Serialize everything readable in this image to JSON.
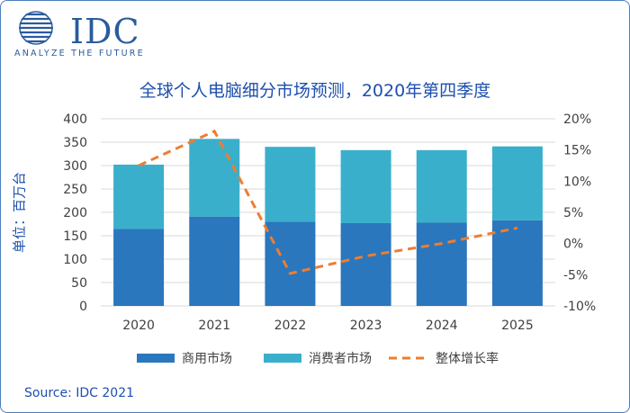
{
  "brand": {
    "logo_text": "IDC",
    "tagline": "ANALYZE THE FUTURE"
  },
  "chart_data": {
    "type": "bar",
    "title": "全球个人电脑细分市场预测，2020年第四季度",
    "ylabel": "单位：百万台",
    "categories": [
      "2020",
      "2021",
      "2022",
      "2023",
      "2024",
      "2025"
    ],
    "series": [
      {
        "name": "商用市场",
        "type": "bar",
        "stack": "total",
        "color": "#2a77bd",
        "values": [
          165,
          191,
          180,
          177,
          178,
          183
        ]
      },
      {
        "name": "消费者市场",
        "type": "bar",
        "stack": "total",
        "color": "#3aafcc",
        "values": [
          137,
          166,
          160,
          156,
          155,
          158
        ]
      },
      {
        "name": "整体增长率",
        "type": "line",
        "style": "dashed",
        "axis": "right",
        "color": "#ee7d31",
        "values": [
          12.5,
          18.0,
          -4.8,
          -2.0,
          0.0,
          2.5
        ]
      }
    ],
    "ylim": [
      0,
      400
    ],
    "yticks": [
      0,
      50,
      100,
      150,
      200,
      250,
      300,
      350,
      400
    ],
    "y2lim": [
      -10,
      20
    ],
    "y2ticks": [
      "-10%",
      "-5%",
      "0%",
      "5%",
      "10%",
      "15%",
      "20%"
    ],
    "grid": true,
    "legend": "bottom"
  },
  "source": "Source: IDC 2021"
}
